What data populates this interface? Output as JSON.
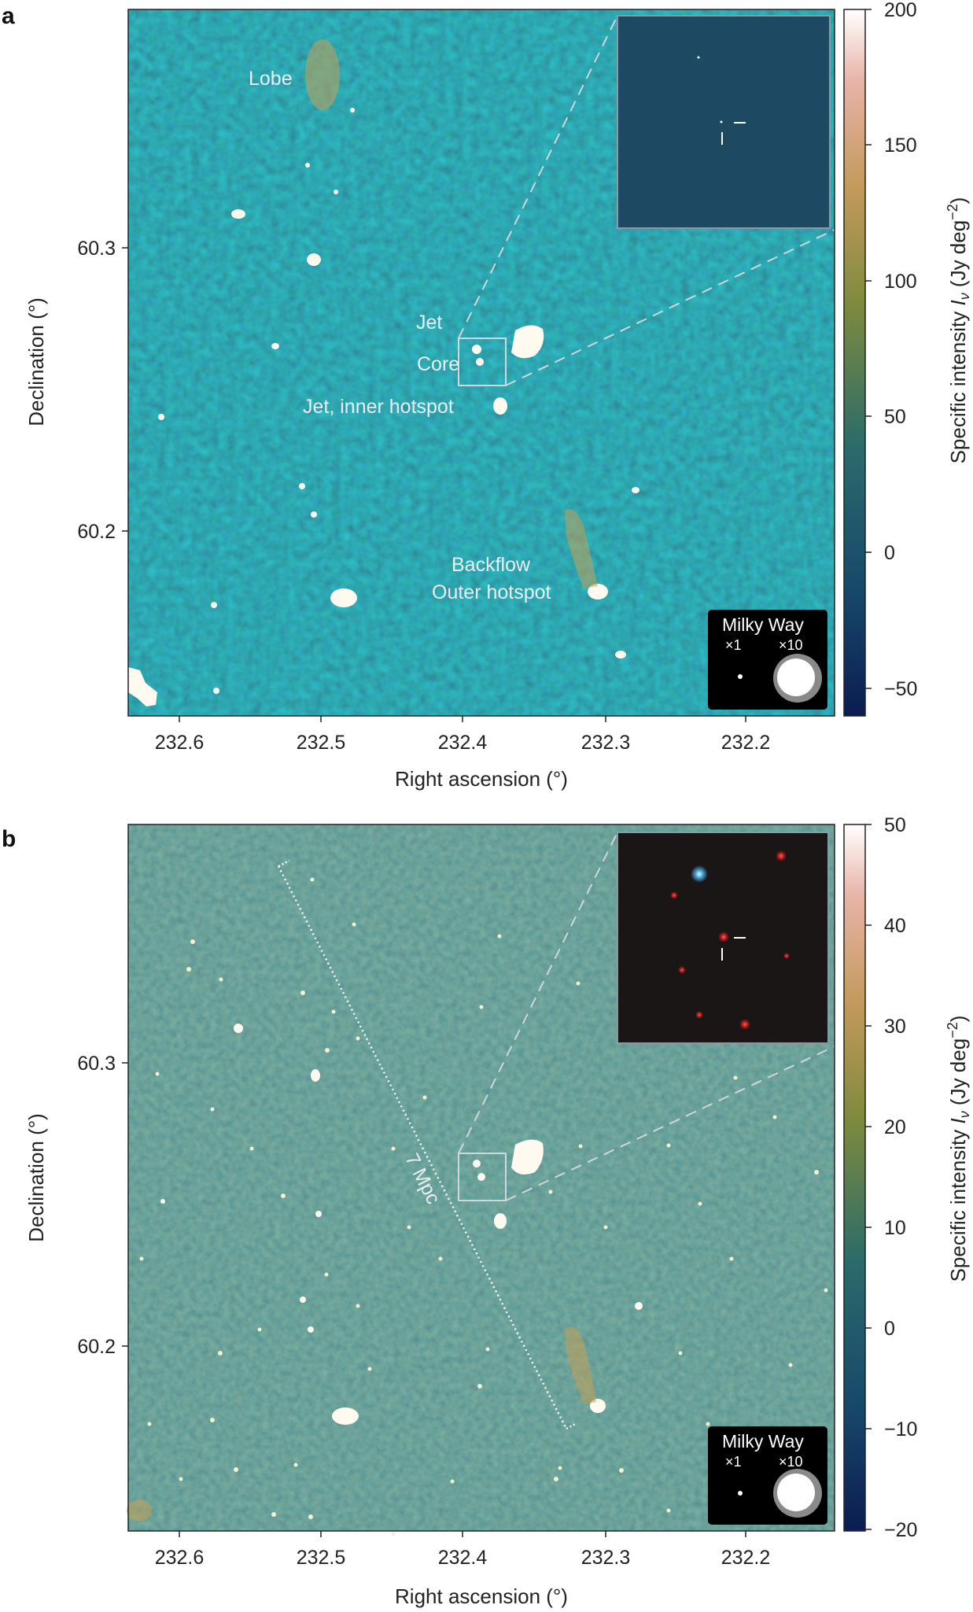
{
  "panels": [
    {
      "letter": "a",
      "annotations": {
        "lobe": "Lobe",
        "jet": "Jet",
        "core": "Core",
        "inner_hotspot": "Jet, inner hotspot",
        "backflow": "Backflow",
        "outer_hotspot": "Outer hotspot"
      },
      "xlabel": "Right ascension (°)",
      "ylabel": "Declination (°)",
      "x_ticks": [
        "232.6",
        "232.5",
        "232.4",
        "232.3",
        "232.2"
      ],
      "y_ticks": [
        "60.3",
        "60.2"
      ],
      "colorbar": {
        "label_prefix": "Specific intensity ",
        "label_symbol": "I",
        "label_sub": "ν",
        "label_units": " (Jy deg",
        "label_exp": "−2",
        "label_close": ")",
        "ticks": [
          "200",
          "150",
          "100",
          "50",
          "0",
          "−50"
        ]
      },
      "milky_way": {
        "title": "Milky Way",
        "x1": "×1",
        "x10": "×10"
      }
    },
    {
      "letter": "b",
      "scale_bar_label": "7 Mpc",
      "xlabel": "Right ascension (°)",
      "ylabel": "Declination (°)",
      "x_ticks": [
        "232.6",
        "232.5",
        "232.4",
        "232.3",
        "232.2"
      ],
      "y_ticks": [
        "60.3",
        "60.2"
      ],
      "colorbar": {
        "label_prefix": "Specific intensity ",
        "label_symbol": "I",
        "label_sub": "ν",
        "label_units": " (Jy deg",
        "label_exp": "−2",
        "label_close": ")",
        "ticks": [
          "50",
          "40",
          "30",
          "20",
          "10",
          "0",
          "−10",
          "−20"
        ]
      },
      "milky_way": {
        "title": "Milky Way",
        "x1": "×1",
        "x10": "×10"
      }
    }
  ],
  "colors": {
    "map_a_bg": "#1c4a5e",
    "map_b_bg": "#2a5a5c",
    "inset_a_bg": "#1d4a62",
    "inset_b_bg": "#1a1616",
    "colormap": [
      "#0b1c52",
      "#17496a",
      "#2a6b6a",
      "#7d8a3e",
      "#c49a5c",
      "#e8b4a8",
      "#ffffff"
    ]
  }
}
